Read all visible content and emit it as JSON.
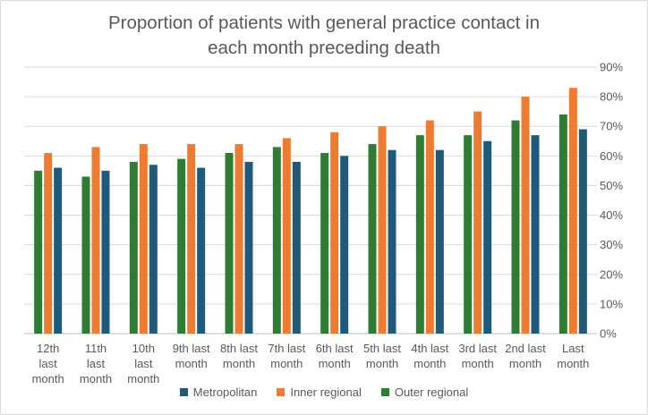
{
  "chart_data": {
    "type": "bar",
    "title_lines": [
      "Proportion of patients with general practice contact in",
      "each month preceding death"
    ],
    "categories": [
      [
        "12th",
        "last",
        "month"
      ],
      [
        "11th",
        "last",
        "month"
      ],
      [
        "10th",
        "last",
        "month"
      ],
      [
        "9th last",
        "month"
      ],
      [
        "8th last",
        "month"
      ],
      [
        "7th last",
        "month"
      ],
      [
        "6th last",
        "month"
      ],
      [
        "5th last",
        "month"
      ],
      [
        "4th last",
        "month"
      ],
      [
        "3rd last",
        "month"
      ],
      [
        "2nd last",
        "month"
      ],
      [
        "Last",
        "month"
      ]
    ],
    "series": [
      {
        "name": "Outer regional",
        "color": "#2e7d32",
        "values": [
          55,
          53,
          58,
          59,
          61,
          63,
          61,
          64,
          67,
          67,
          72,
          74
        ]
      },
      {
        "name": "Inner regional",
        "color": "#ee7b30",
        "values": [
          61,
          63,
          64,
          64,
          64,
          66,
          68,
          70,
          72,
          75,
          80,
          83
        ]
      },
      {
        "name": "Metropolitan",
        "color": "#1f5a7a",
        "values": [
          56,
          55,
          57,
          56,
          58,
          58,
          60,
          62,
          62,
          65,
          67,
          69
        ]
      }
    ],
    "legend_order": [
      "Metropolitan",
      "Inner regional",
      "Outer regional"
    ],
    "y_ticks": [
      "0%",
      "10%",
      "20%",
      "30%",
      "40%",
      "50%",
      "60%",
      "70%",
      "80%",
      "90%"
    ],
    "ylim": [
      0,
      90
    ],
    "y_axis_side": "right",
    "grid": true,
    "legend_position": "bottom"
  }
}
